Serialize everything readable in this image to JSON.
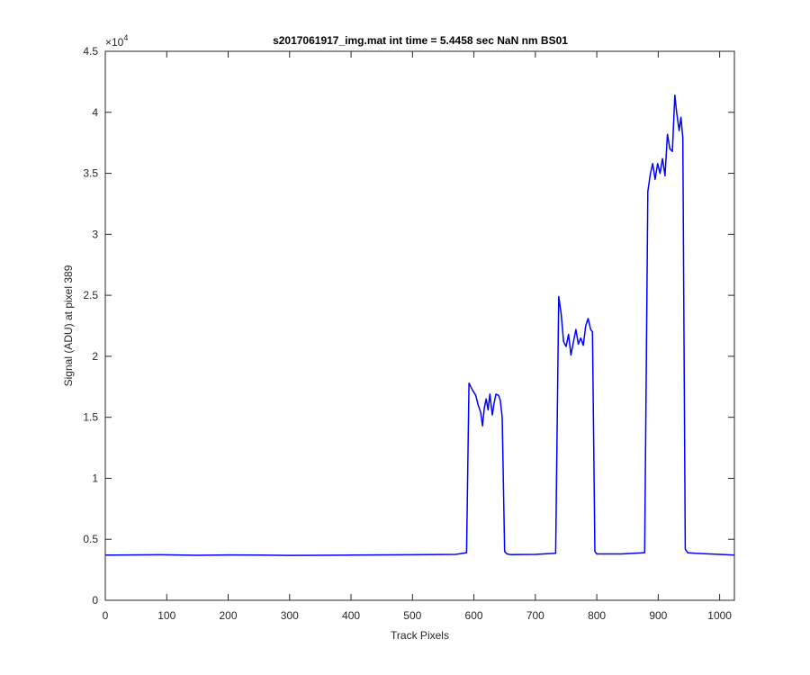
{
  "chart_data": {
    "type": "line",
    "title": "s2017061917_img.mat int time = 5.4458 sec  NaN nm BS01",
    "xlabel": "Track Pixels",
    "ylabel": "Signal (ADU) at pixel 389",
    "xlim": [
      0,
      1024
    ],
    "ylim": [
      0,
      45000
    ],
    "y_exponent_label": "×10",
    "y_exponent_power": "4",
    "x_ticks": [
      0,
      100,
      200,
      300,
      400,
      500,
      600,
      700,
      800,
      900,
      1000
    ],
    "x_tick_labels": [
      "0",
      "100",
      "200",
      "300",
      "400",
      "500",
      "600",
      "700",
      "800",
      "900",
      "1000"
    ],
    "y_ticks": [
      0,
      5000,
      10000,
      15000,
      20000,
      25000,
      30000,
      35000,
      40000,
      45000
    ],
    "y_tick_labels": [
      "0",
      "0.5",
      "1",
      "1.5",
      "2",
      "2.5",
      "3",
      "3.5",
      "4",
      "4.5"
    ],
    "grid": false,
    "legend": "none",
    "series": [
      {
        "color": "#0000ff",
        "x": [
          0,
          90,
          150,
          200,
          250,
          300,
          400,
          500,
          570,
          588,
          592,
          598,
          603,
          607,
          611,
          614,
          617,
          620,
          623,
          626,
          630,
          633,
          636,
          640,
          643,
          646,
          650,
          654,
          660,
          700,
          733,
          738,
          742,
          746,
          750,
          754,
          758,
          762,
          766,
          770,
          774,
          778,
          782,
          786,
          790,
          793,
          797,
          800,
          840,
          878,
          883,
          887,
          891,
          895,
          899,
          903,
          907,
          911,
          915,
          919,
          923,
          927,
          930,
          934,
          937,
          940,
          944,
          948,
          960,
          1000,
          1024
        ],
        "y": [
          3700,
          3730,
          3690,
          3720,
          3700,
          3680,
          3700,
          3730,
          3760,
          3900,
          17800,
          17200,
          16800,
          16000,
          15400,
          14300,
          15800,
          16500,
          15600,
          16900,
          15200,
          16200,
          16900,
          16800,
          16400,
          15000,
          4000,
          3800,
          3750,
          3760,
          3850,
          24900,
          23500,
          21200,
          20800,
          21800,
          20100,
          21200,
          22200,
          21000,
          21500,
          20900,
          22500,
          23100,
          22200,
          22000,
          4000,
          3800,
          3800,
          3900,
          33500,
          34900,
          35800,
          34500,
          35800,
          35000,
          36200,
          34800,
          38200,
          37000,
          36800,
          41400,
          40000,
          38500,
          39600,
          37900,
          4200,
          3900,
          3850,
          3760,
          3700
        ]
      }
    ]
  }
}
